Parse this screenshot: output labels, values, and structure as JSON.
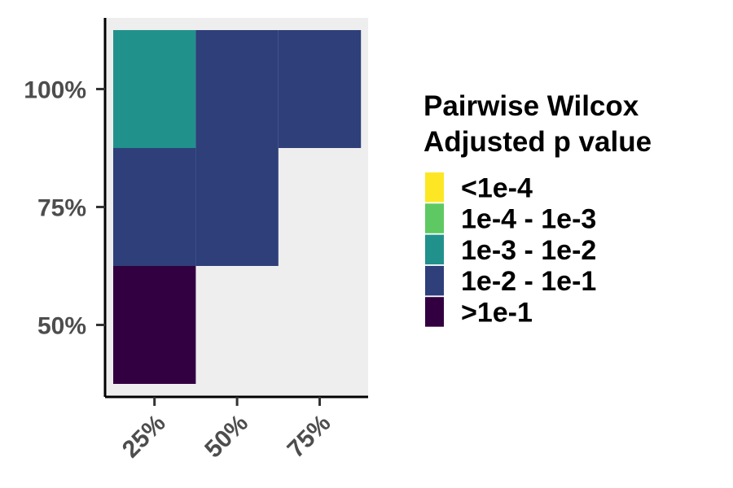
{
  "chart_data": {
    "type": "heatmap",
    "title": "",
    "xlabel": "",
    "ylabel": "",
    "x_categories": [
      "25%",
      "50%",
      "75%"
    ],
    "y_categories": [
      "50%",
      "75%",
      "100%"
    ],
    "panel_background": "#eeeeee",
    "cells": [
      {
        "x": "25%",
        "y": "50%",
        "bin": ">1e-1"
      },
      {
        "x": "25%",
        "y": "75%",
        "bin": "1e-2 - 1e-1"
      },
      {
        "x": "50%",
        "y": "75%",
        "bin": "1e-2 - 1e-1"
      },
      {
        "x": "25%",
        "y": "100%",
        "bin": "1e-3 - 1e-2"
      },
      {
        "x": "50%",
        "y": "100%",
        "bin": "1e-2 - 1e-1"
      },
      {
        "x": "75%",
        "y": "100%",
        "bin": "1e-2 - 1e-1"
      }
    ],
    "legend": {
      "title_lines": [
        "Pairwise Wilcox",
        "Adjusted p value"
      ],
      "placement": "right",
      "entries": [
        {
          "label": "<1e-4",
          "color": "#fde725"
        },
        {
          "label": "1e-4 - 1e-3",
          "color": "#5ec962"
        },
        {
          "label": "1e-3 - 1e-2",
          "color": "#21918c"
        },
        {
          "label": "1e-2 - 1e-1",
          "color": "#2e3f7a"
        },
        {
          "label": ">1e-1",
          "color": "#320040"
        }
      ]
    }
  }
}
